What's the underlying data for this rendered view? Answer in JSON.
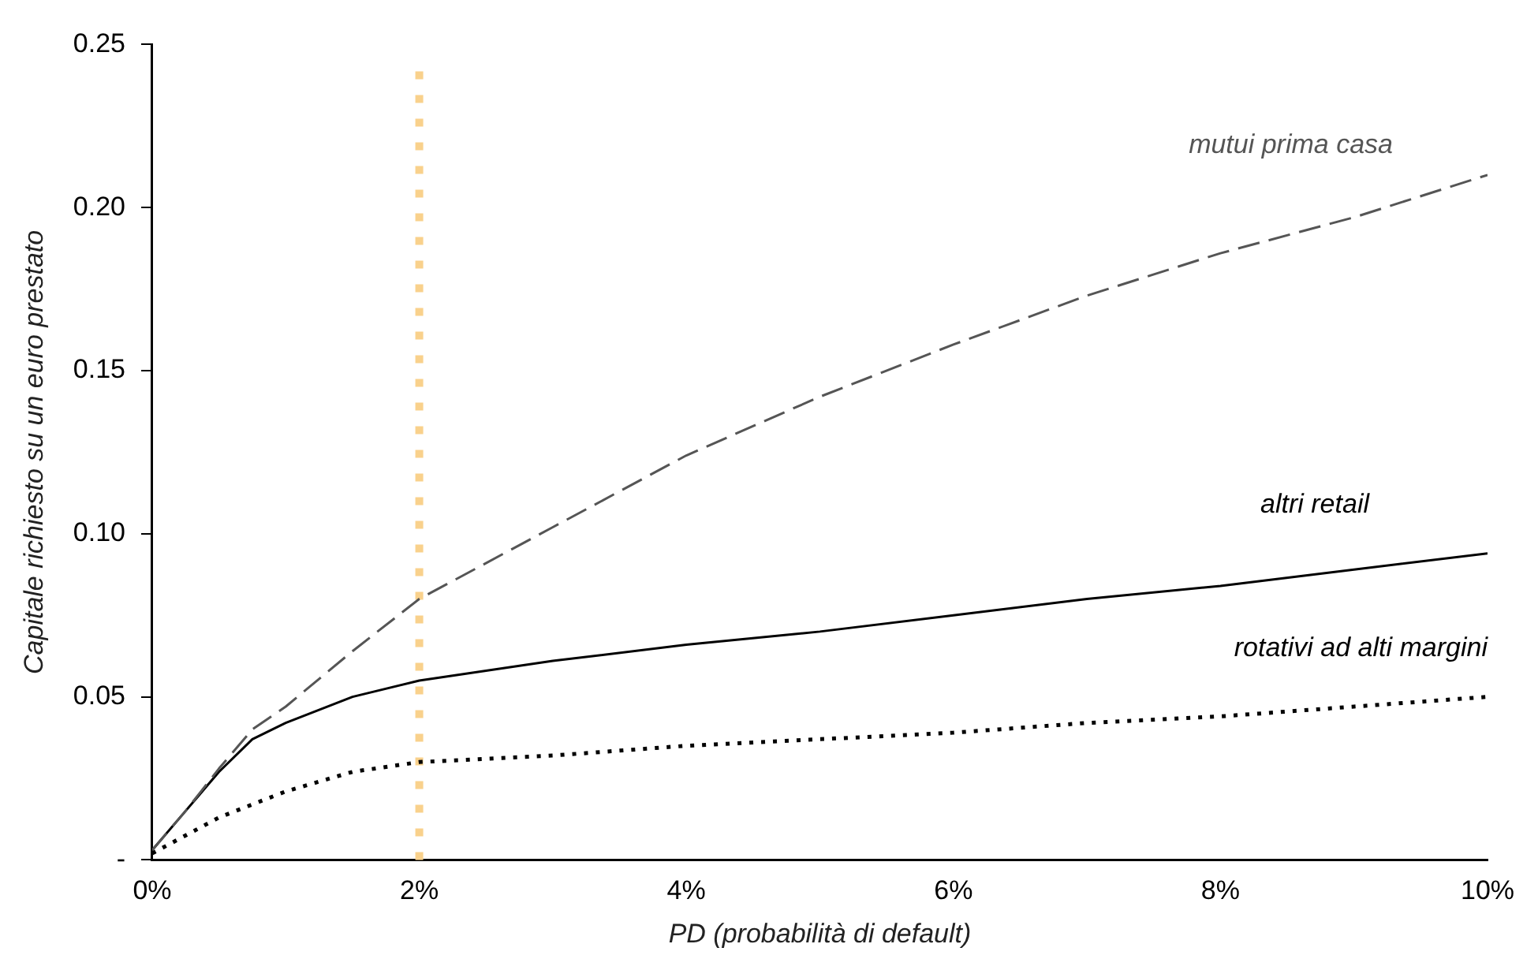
{
  "chart_data": {
    "type": "line",
    "xlabel": "PD (probabilità di default)",
    "ylabel": "Capitale richiesto su un euro prestato",
    "xlim": [
      0,
      10
    ],
    "xticks": [
      {
        "value": 0,
        "label": "0%"
      },
      {
        "value": 2,
        "label": "2%"
      },
      {
        "value": 4,
        "label": "4%"
      },
      {
        "value": 6,
        "label": "6%"
      },
      {
        "value": 8,
        "label": "8%"
      },
      {
        "value": 10,
        "label": "10%"
      }
    ],
    "ylim": [
      0,
      0.25
    ],
    "yticks": [
      {
        "value": 0,
        "label": "-"
      },
      0.05,
      {
        "value": 0.1,
        "label": "0.10"
      },
      0.15,
      {
        "value": 0.2,
        "label": "0.20"
      },
      0.25
    ],
    "grid": false,
    "legend": false,
    "marker": "none",
    "series": [
      {
        "name": "mutui prima casa",
        "color": "#555555",
        "line_style": "dashed",
        "x": [
          0,
          0.25,
          0.5,
          0.75,
          1,
          1.5,
          2,
          3,
          4,
          5,
          6,
          7,
          8,
          9,
          10
        ],
        "values": [
          0.003,
          0.015,
          0.028,
          0.04,
          0.047,
          0.064,
          0.08,
          0.102,
          0.124,
          0.142,
          0.158,
          0.173,
          0.186,
          0.197,
          0.21
        ]
      },
      {
        "name": "altri retail",
        "color": "#000000",
        "line_style": "solid",
        "x": [
          0,
          0.25,
          0.5,
          0.75,
          1,
          1.5,
          2,
          3,
          4,
          5,
          6,
          7,
          8,
          9,
          10
        ],
        "values": [
          0.003,
          0.015,
          0.027,
          0.037,
          0.042,
          0.05,
          0.055,
          0.061,
          0.066,
          0.07,
          0.075,
          0.08,
          0.084,
          0.089,
          0.094
        ]
      },
      {
        "name": "rotativi ad alti margini",
        "color": "#000000",
        "line_style": "dotted",
        "x": [
          0,
          0.5,
          1,
          1.5,
          2,
          3,
          4,
          5,
          6,
          7,
          8,
          9,
          10
        ],
        "values": [
          0.002,
          0.013,
          0.021,
          0.027,
          0.03,
          0.032,
          0.035,
          0.037,
          0.039,
          0.042,
          0.044,
          0.047,
          0.05
        ]
      }
    ],
    "ref_lines": [
      {
        "axis": "x",
        "value": 2,
        "color": "#f9d18c",
        "line_style": "dotted"
      }
    ]
  }
}
